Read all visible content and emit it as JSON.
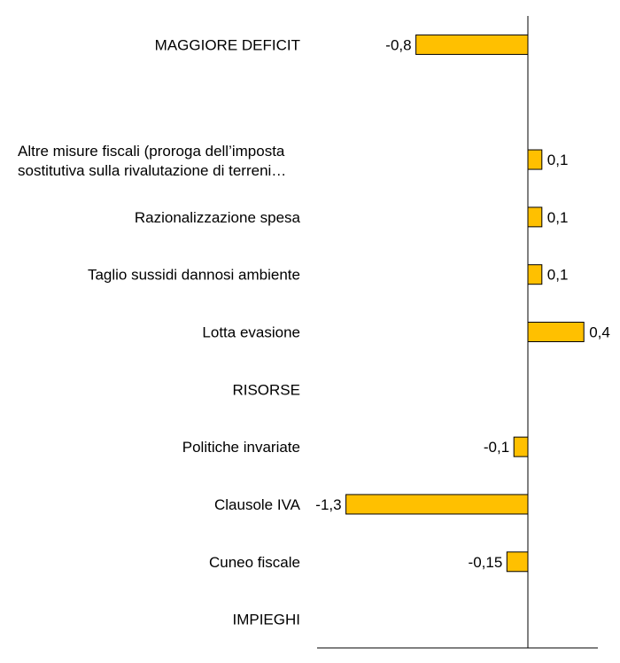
{
  "chart_data": {
    "type": "bar",
    "orientation": "horizontal",
    "bar_color": "#ffc000",
    "categories": [
      "MAGGIORE DEFICIT",
      "",
      "Altre misure fiscali (proroga dell’imposta\nsostitutiva  sulla rivalutazione di terreni…",
      "Razionalizzazione spesa",
      "Taglio sussidi dannosi ambiente",
      "Lotta evasione",
      "RISORSE",
      "Politiche invariate",
      "Clausole IVA",
      "Cuneo fiscale",
      "IMPIEGHI"
    ],
    "values": [
      -0.8,
      null,
      0.1,
      0.1,
      0.1,
      0.4,
      null,
      -0.1,
      -1.3,
      -0.15,
      null
    ],
    "value_labels": [
      "-0,8",
      "",
      "0,1",
      "0,1",
      "0,1",
      "0,4",
      "",
      "-0,1",
      "-1,3",
      "-0,15",
      ""
    ],
    "xlim": [
      -1.5,
      0.4
    ],
    "grid": false,
    "legend": "none"
  }
}
